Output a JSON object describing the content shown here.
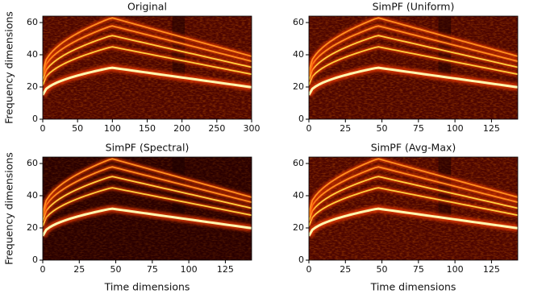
{
  "chart_data": [
    {
      "type": "heatmap",
      "title": "Original",
      "ylabel": "Frequency dimensions",
      "xlim": [
        0,
        300
      ],
      "ylim": [
        0,
        64
      ],
      "xticks": [
        0,
        50,
        100,
        150,
        200,
        250,
        300
      ],
      "yticks": [
        0,
        20,
        40,
        60
      ]
    },
    {
      "type": "heatmap",
      "title": "SimPF (Uniform)",
      "xlim": [
        0,
        143
      ],
      "ylim": [
        0,
        64
      ],
      "xticks": [
        0,
        25,
        50,
        75,
        100,
        125
      ],
      "yticks": [
        0,
        20,
        40,
        60
      ]
    },
    {
      "type": "heatmap",
      "title": "SimPF (Spectral)",
      "ylabel": "Frequency dimensions",
      "xlabel": "Time dimensions",
      "xlim": [
        0,
        143
      ],
      "ylim": [
        0,
        64
      ],
      "xticks": [
        0,
        25,
        50,
        75,
        100,
        125
      ],
      "yticks": [
        0,
        20,
        40,
        60
      ]
    },
    {
      "type": "heatmap",
      "title": "SimPF (Avg-Max)",
      "xlabel": "Time dimensions",
      "xlim": [
        0,
        143
      ],
      "ylim": [
        0,
        64
      ],
      "xticks": [
        0,
        25,
        50,
        75,
        100,
        125
      ],
      "yticks": [
        0,
        20,
        40,
        60
      ]
    }
  ]
}
